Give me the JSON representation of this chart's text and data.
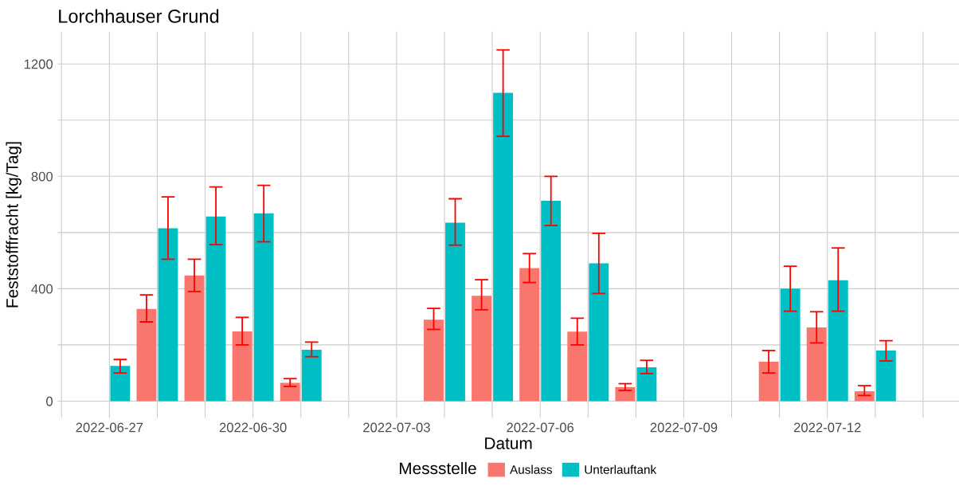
{
  "chart_data": {
    "type": "bar",
    "title": "Lorchhauser Grund",
    "xlabel": "Datum",
    "ylabel": "Feststofffracht [kg/Tag]",
    "legend_title": "Messstelle",
    "series": [
      {
        "name": "Auslass",
        "color": "#f8766d",
        "x": [
          "2022-06-28",
          "2022-06-29",
          "2022-06-30",
          "2022-07-01",
          "2022-07-04",
          "2022-07-05",
          "2022-07-06",
          "2022-07-07",
          "2022-07-08",
          "2022-07-11",
          "2022-07-12",
          "2022-07-13"
        ],
        "values": [
          328,
          447,
          248,
          65,
          290,
          375,
          473,
          247,
          50,
          140,
          262,
          35
        ],
        "errors": [
          [
            282,
            378
          ],
          [
            390,
            505
          ],
          [
            200,
            298
          ],
          [
            52,
            80
          ],
          [
            255,
            330
          ],
          [
            325,
            432
          ],
          [
            422,
            525
          ],
          [
            200,
            295
          ],
          [
            38,
            62
          ],
          [
            100,
            180
          ],
          [
            207,
            318
          ],
          [
            20,
            55
          ]
        ]
      },
      {
        "name": "Unterlauftank",
        "color": "#00bfc4",
        "x": [
          "2022-06-27",
          "2022-06-28",
          "2022-06-29",
          "2022-06-30",
          "2022-07-01",
          "2022-07-04",
          "2022-07-05",
          "2022-07-06",
          "2022-07-07",
          "2022-07-08",
          "2022-07-11",
          "2022-07-12",
          "2022-07-13"
        ],
        "values": [
          125,
          615,
          657,
          668,
          183,
          635,
          1097,
          713,
          490,
          120,
          400,
          430,
          180
        ],
        "errors": [
          [
            100,
            148
          ],
          [
            505,
            727
          ],
          [
            557,
            762
          ],
          [
            567,
            768
          ],
          [
            158,
            210
          ],
          [
            555,
            720
          ],
          [
            942,
            1250
          ],
          [
            625,
            800
          ],
          [
            383,
            597
          ],
          [
            98,
            145
          ],
          [
            320,
            480
          ],
          [
            320,
            545
          ],
          [
            143,
            215
          ]
        ]
      }
    ],
    "xlim": [
      "2022-06-25T22:00",
      "2022-07-14T18:00"
    ],
    "xticks": [
      {
        "value": "2022-06-26",
        "label": null
      },
      {
        "value": "2022-06-27",
        "label": "2022-06-27"
      },
      {
        "value": "2022-06-28",
        "label": null
      },
      {
        "value": "2022-06-29",
        "label": null
      },
      {
        "value": "2022-06-30",
        "label": "2022-06-30"
      },
      {
        "value": "2022-07-01",
        "label": null
      },
      {
        "value": "2022-07-02",
        "label": null
      },
      {
        "value": "2022-07-03",
        "label": "2022-07-03"
      },
      {
        "value": "2022-07-04",
        "label": null
      },
      {
        "value": "2022-07-05",
        "label": null
      },
      {
        "value": "2022-07-06",
        "label": "2022-07-06"
      },
      {
        "value": "2022-07-07",
        "label": null
      },
      {
        "value": "2022-07-08",
        "label": null
      },
      {
        "value": "2022-07-09",
        "label": "2022-07-09"
      },
      {
        "value": "2022-07-10",
        "label": null
      },
      {
        "value": "2022-07-11",
        "label": null
      },
      {
        "value": "2022-07-12",
        "label": "2022-07-12"
      },
      {
        "value": "2022-07-13",
        "label": null
      },
      {
        "value": "2022-07-14",
        "label": null
      }
    ],
    "ylim": [
      -60,
      1315
    ],
    "yticks": [
      0,
      {
        "value": 200,
        "label": null
      },
      400,
      {
        "value": 600,
        "label": null
      },
      800,
      {
        "value": 1000,
        "label": null
      },
      1200
    ],
    "grid": true,
    "legend": "bottom"
  }
}
